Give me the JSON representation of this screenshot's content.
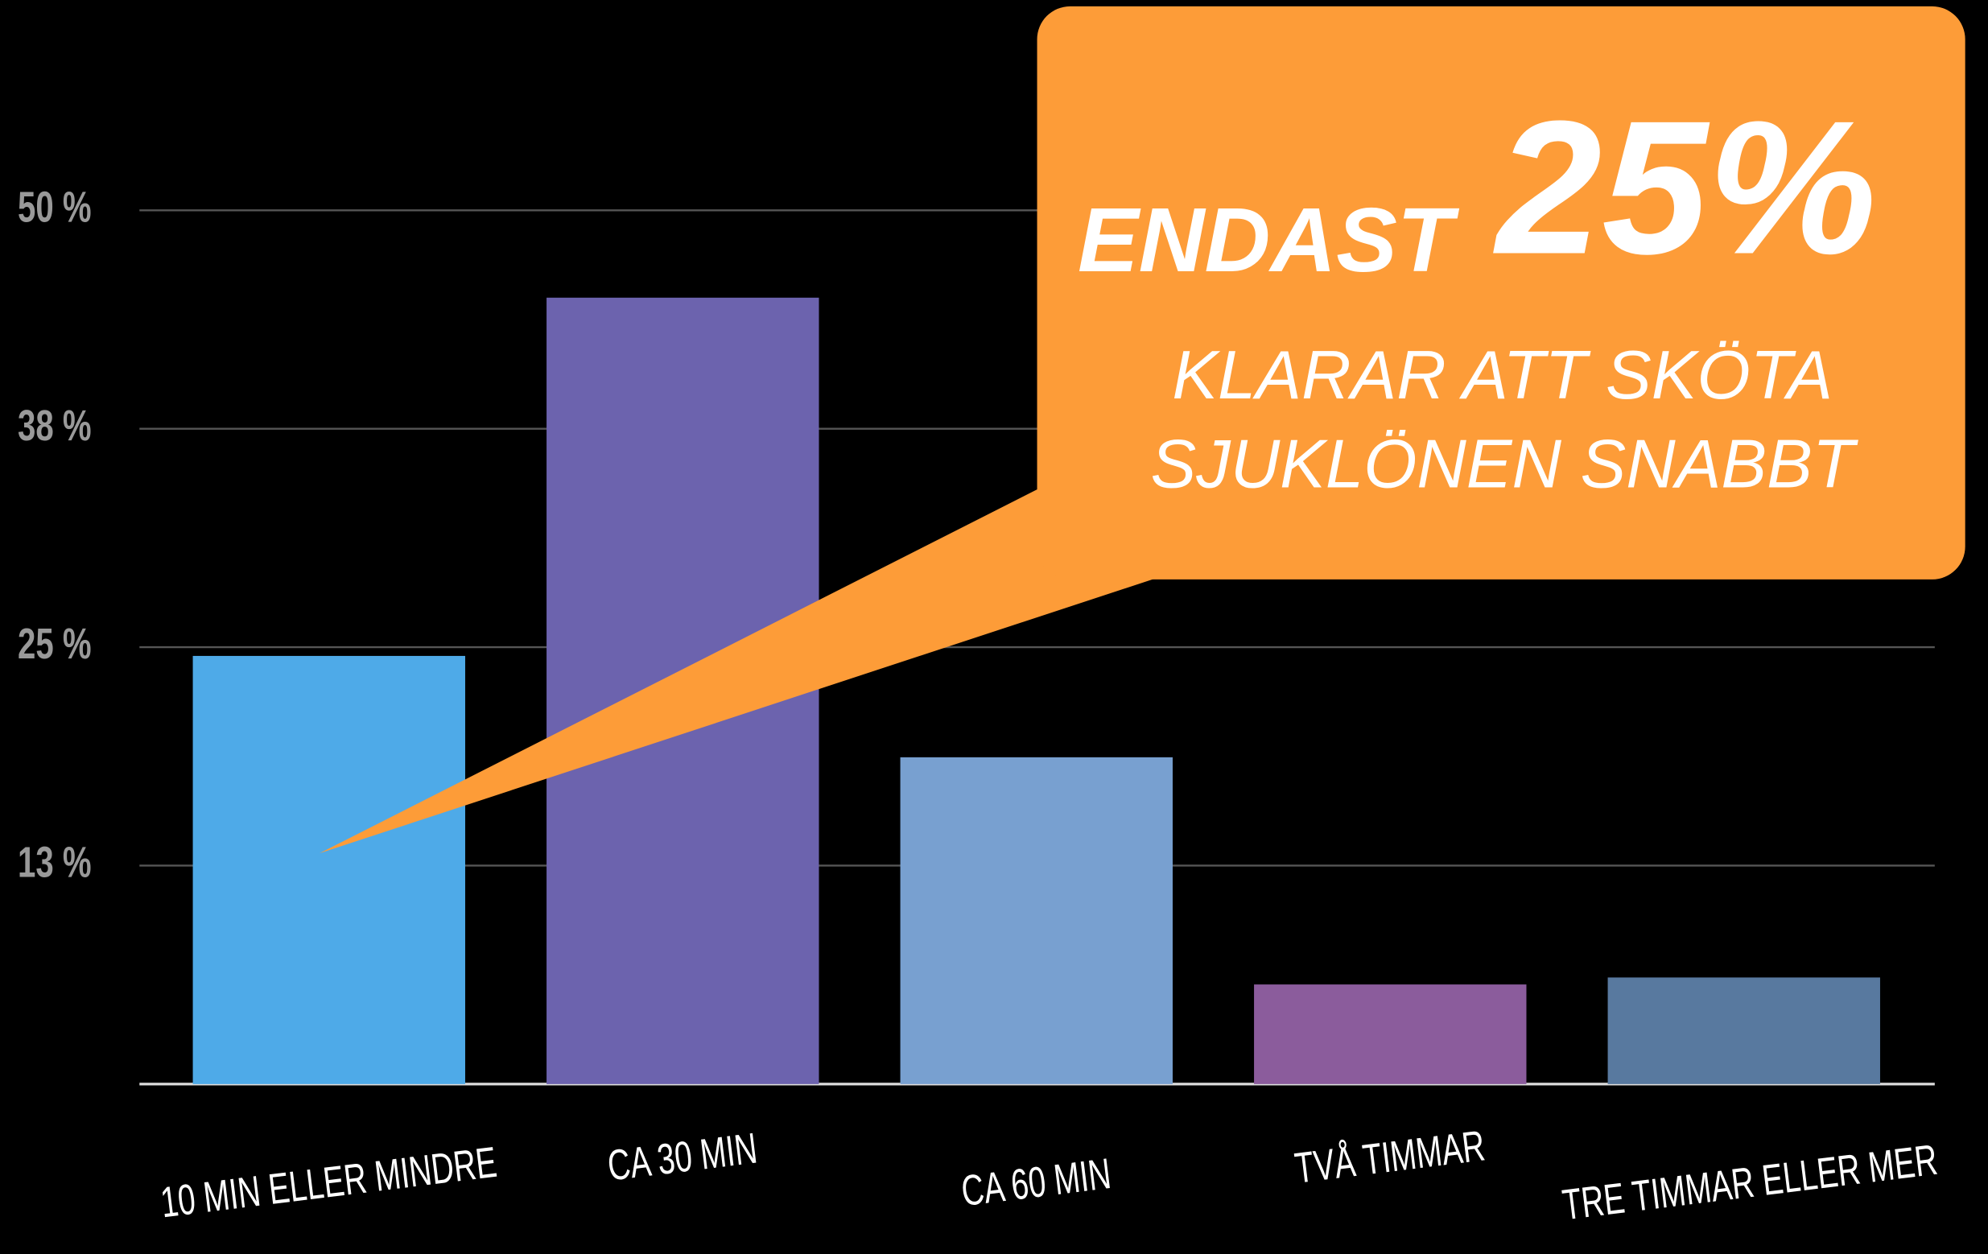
{
  "chart_data": {
    "type": "bar",
    "categories": [
      "10 MIN ELLER MINDRE",
      "CA 30 MIN",
      "CA 60 MIN",
      "TVÅ TIMMAR",
      "TRE TIMMAR ELLER MER"
    ],
    "values": [
      24.5,
      45,
      18.7,
      5.7,
      6.1
    ],
    "colors": [
      "#4eaae8",
      "#6c63ae",
      "#78a0d0",
      "#8b5c9c",
      "#58799f"
    ],
    "ylim": [
      0,
      60
    ],
    "yticks": [
      {
        "value": 12.5,
        "label": "13 %"
      },
      {
        "value": 25,
        "label": "25 %"
      },
      {
        "value": 37.5,
        "label": "38 %"
      },
      {
        "value": 50,
        "label": "50 %"
      }
    ],
    "grid": true,
    "annotation": {
      "highlight": "ENDAST",
      "value_text": "25%",
      "lines": [
        "KLARAR ATT SKÖTA",
        "SJUKLÖNEN SNABBT"
      ]
    }
  }
}
